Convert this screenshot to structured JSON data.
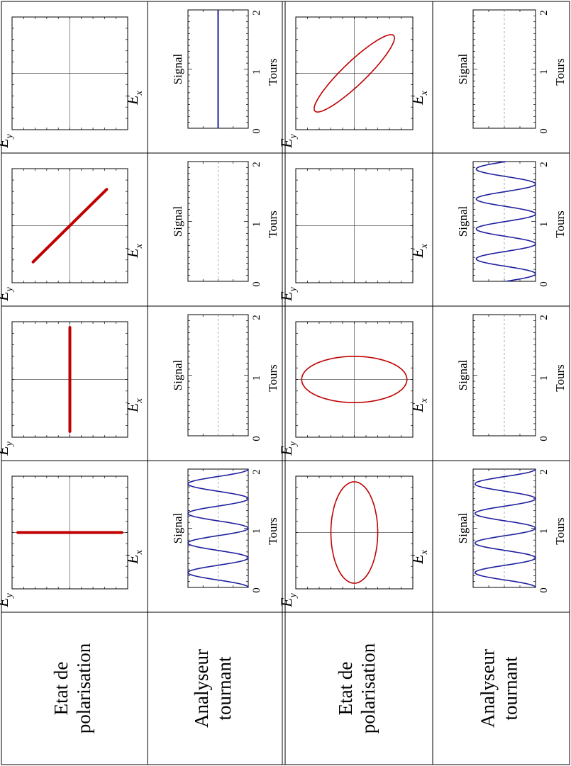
{
  "rows": [
    {
      "header": [
        "Etat de",
        "polarisation"
      ]
    },
    {
      "header": [
        "Analyseur",
        "tournant"
      ]
    },
    {
      "header": [
        "Etat de",
        "polarisation"
      ]
    },
    {
      "header": [
        "Analyseur",
        "tournant"
      ]
    }
  ],
  "axis_labels": {
    "ex_base": "E",
    "ex_sub": "x",
    "ey_base": "E",
    "ey_sub": "y",
    "signal": "Signal",
    "tours": "Tours",
    "tours_ticks": [
      "0",
      "1",
      "2"
    ]
  },
  "chart_data": [
    {
      "type": "line",
      "set": 1,
      "column": 1,
      "kind": "polarisation",
      "shape": "line",
      "angle_deg": 90,
      "amplitude": 0.9
    },
    {
      "type": "line",
      "set": 1,
      "column": 1,
      "kind": "signal",
      "xlabel": "Tours",
      "ylabel": "Signal",
      "xlim": [
        0,
        2
      ],
      "ylim": [
        0,
        1
      ],
      "waveform": "cos2",
      "amplitude": 1,
      "offset": 0,
      "periods_per_tour": 2,
      "phase_tours": 0
    },
    {
      "type": "line",
      "set": 1,
      "column": 2,
      "kind": "polarisation",
      "shape": "line",
      "angle_deg": 0,
      "amplitude": 0.9
    },
    {
      "type": "line",
      "set": 1,
      "column": 2,
      "kind": "signal",
      "xlabel": "Tours",
      "ylabel": "Signal",
      "xlim": [
        0,
        2
      ],
      "ylim": [
        0,
        1
      ],
      "waveform": "empty"
    },
    {
      "type": "line",
      "set": 1,
      "column": 3,
      "kind": "polarisation",
      "shape": "line",
      "angle_deg": 135,
      "amplitude": 0.9
    },
    {
      "type": "line",
      "set": 1,
      "column": 3,
      "kind": "signal",
      "xlabel": "Tours",
      "ylabel": "Signal",
      "xlim": [
        0,
        2
      ],
      "ylim": [
        0,
        1
      ],
      "waveform": "empty"
    },
    {
      "type": "line",
      "set": 1,
      "column": 4,
      "kind": "polarisation",
      "shape": "empty"
    },
    {
      "type": "line",
      "set": 1,
      "column": 4,
      "kind": "signal",
      "xlabel": "Tours",
      "ylabel": "Signal",
      "xlim": [
        0,
        2
      ],
      "ylim": [
        0,
        1
      ],
      "waveform": "constant",
      "level": 0.5
    },
    {
      "type": "line",
      "set": 2,
      "column": 1,
      "kind": "polarisation",
      "shape": "ellipse",
      "semi_axis_ex": 0.9,
      "semi_axis_ey": 0.4
    },
    {
      "type": "line",
      "set": 2,
      "column": 1,
      "kind": "signal",
      "xlabel": "Tours",
      "ylabel": "Signal",
      "xlim": [
        0,
        2
      ],
      "ylim": [
        0,
        1
      ],
      "waveform": "cos2",
      "amplitude": 0.97,
      "offset": 0.03,
      "periods_per_tour": 2,
      "phase_tours": 0
    },
    {
      "type": "line",
      "set": 2,
      "column": 2,
      "kind": "polarisation",
      "shape": "ellipse",
      "semi_axis_ex": 0.4,
      "semi_axis_ey": 0.9
    },
    {
      "type": "line",
      "set": 2,
      "column": 2,
      "kind": "signal",
      "xlabel": "Tours",
      "ylabel": "Signal",
      "xlim": [
        0,
        2
      ],
      "ylim": [
        0,
        1
      ],
      "waveform": "empty"
    },
    {
      "type": "line",
      "set": 2,
      "column": 3,
      "kind": "polarisation",
      "shape": "empty"
    },
    {
      "type": "line",
      "set": 2,
      "column": 3,
      "kind": "signal",
      "xlabel": "Tours",
      "ylabel": "Signal",
      "xlim": [
        0,
        2
      ],
      "ylim": [
        0,
        1
      ],
      "waveform": "cos2",
      "amplitude": 0.95,
      "offset": 0.05,
      "periods_per_tour": 2,
      "phase_tours": 0.125
    },
    {
      "type": "line",
      "set": 2,
      "column": 4,
      "kind": "polarisation",
      "shape": "ellipse",
      "semi_axis_major": 0.95,
      "semi_axis_minor": 0.2,
      "major_axis_angle_deg": 135
    },
    {
      "type": "line",
      "set": 2,
      "column": 4,
      "kind": "signal",
      "xlabel": "Tours",
      "ylabel": "Signal",
      "xlim": [
        0,
        2
      ],
      "ylim": [
        0,
        1
      ],
      "waveform": "empty"
    }
  ],
  "colors": {
    "polarisation": "#c00000",
    "signal": "#1f1f9f",
    "grid": "#000000",
    "dashed": "#9a9a9a"
  }
}
